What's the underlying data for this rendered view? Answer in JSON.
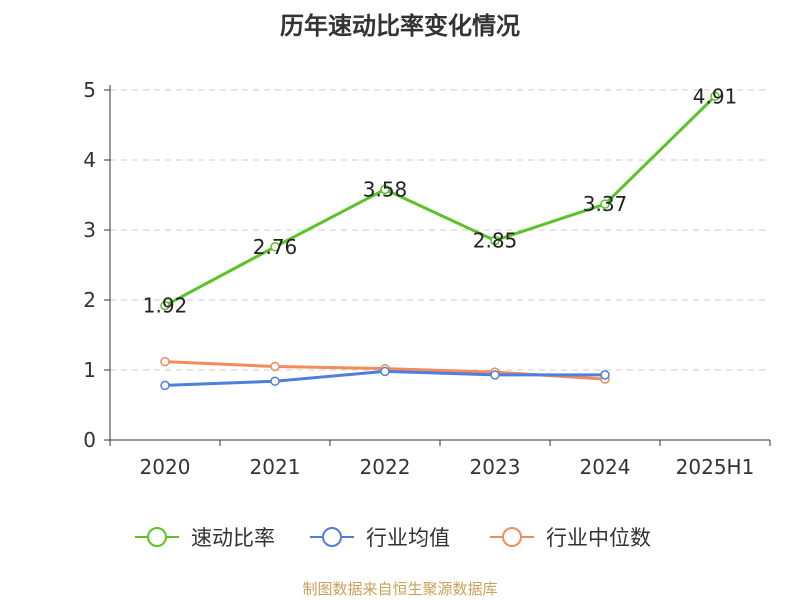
{
  "chart_data": {
    "type": "line",
    "title": "历年速动比率变化情况",
    "categories": [
      "2020",
      "2021",
      "2022",
      "2023",
      "2024",
      "2025H1"
    ],
    "ylim": [
      0,
      5
    ],
    "yticks": [
      "0",
      "1",
      "2",
      "3",
      "4",
      "5"
    ],
    "grid": true,
    "legend_position": "bottom",
    "series": [
      {
        "name": "速动比率",
        "values": [
          1.92,
          2.76,
          3.58,
          2.85,
          3.37,
          4.91
        ],
        "labels": [
          "1.92",
          "2.76",
          "3.58",
          "2.85",
          "3.37",
          "4.91"
        ],
        "color": "#5bc22a"
      },
      {
        "name": "行业均值",
        "values": [
          0.78,
          0.84,
          0.98,
          0.93,
          0.93,
          null
        ],
        "color": "#4f7fdc"
      },
      {
        "name": "行业中位数",
        "values": [
          1.12,
          1.05,
          1.02,
          0.97,
          0.87,
          null
        ],
        "color": "#f28c5c"
      }
    ]
  },
  "footer": "制图数据来自恒生聚源数据库"
}
